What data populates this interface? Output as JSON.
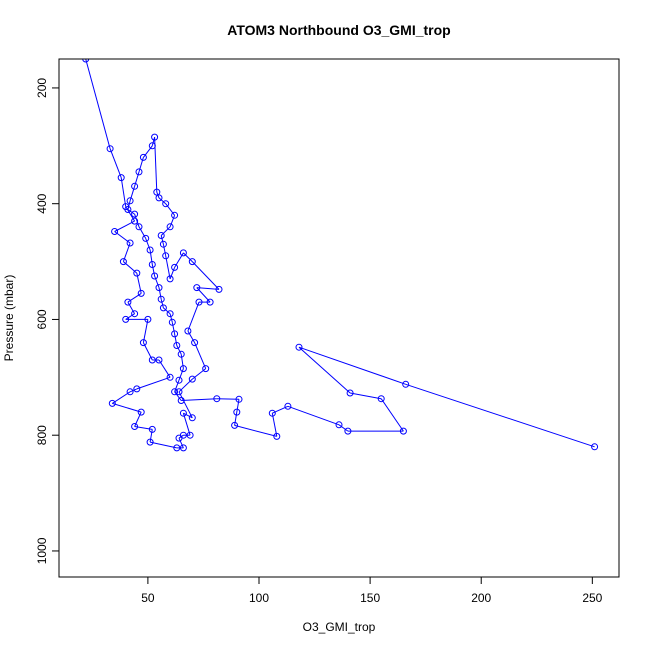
{
  "chart_data": {
    "type": "line",
    "title": "ATOM3 Northbound O3_GMI_trop",
    "xlabel": "O3_GMI_trop",
    "ylabel": "Pressure (mbar)",
    "xlim": [
      10,
      262
    ],
    "ylim": [
      1045,
      150
    ],
    "y_reversed": true,
    "xticks": [
      50,
      100,
      150,
      200,
      250
    ],
    "yticks": [
      200,
      400,
      600,
      800,
      1000
    ],
    "grid": false,
    "series_color": "#0000ff",
    "series": [
      {
        "style": "lines+markers",
        "marker": "open-circle",
        "points": [
          [
            22,
            150
          ],
          [
            33,
            305
          ],
          [
            38,
            355
          ],
          [
            40,
            405
          ],
          [
            44,
            430
          ],
          [
            35,
            448
          ],
          [
            42,
            468
          ],
          [
            39,
            500
          ],
          [
            45,
            520
          ],
          [
            47,
            555
          ],
          [
            41,
            570
          ],
          [
            44,
            590
          ],
          [
            40,
            600
          ],
          [
            50,
            600
          ],
          [
            48,
            640
          ],
          [
            52,
            670
          ],
          [
            55,
            670
          ],
          [
            60,
            700
          ],
          [
            45,
            720
          ],
          [
            42,
            725
          ],
          [
            34,
            745
          ],
          [
            47,
            760
          ],
          [
            44,
            785
          ],
          [
            52,
            790
          ],
          [
            51,
            812
          ],
          [
            63,
            822
          ],
          [
            66,
            822
          ],
          [
            64,
            805
          ],
          [
            66,
            800
          ],
          [
            69,
            800
          ],
          [
            66,
            762
          ],
          [
            70,
            770
          ],
          [
            64,
            725
          ],
          [
            70,
            703
          ],
          [
            76,
            685
          ],
          [
            71,
            640
          ],
          [
            68,
            620
          ],
          [
            73,
            570
          ],
          [
            78,
            570
          ],
          [
            72,
            545
          ],
          [
            82,
            548
          ],
          [
            70,
            500
          ],
          [
            66,
            485
          ],
          [
            62,
            510
          ],
          [
            60,
            530
          ],
          [
            58,
            490
          ],
          [
            57,
            470
          ],
          [
            56,
            455
          ],
          [
            60,
            440
          ],
          [
            62,
            420
          ],
          [
            58,
            400
          ],
          [
            55,
            390
          ],
          [
            54,
            380
          ],
          [
            53,
            285
          ],
          [
            52,
            300
          ],
          [
            48,
            320
          ],
          [
            46,
            345
          ],
          [
            44,
            370
          ],
          [
            42,
            395
          ],
          [
            41,
            410
          ],
          [
            44,
            418
          ],
          [
            46,
            440
          ],
          [
            49,
            460
          ],
          [
            51,
            480
          ],
          [
            52,
            505
          ],
          [
            53,
            525
          ],
          [
            55,
            545
          ],
          [
            56,
            565
          ],
          [
            57,
            580
          ],
          [
            60,
            590
          ],
          [
            61,
            605
          ],
          [
            62,
            625
          ],
          [
            63,
            645
          ],
          [
            65,
            660
          ],
          [
            66,
            685
          ],
          [
            64,
            705
          ],
          [
            62,
            725
          ],
          [
            65,
            740
          ],
          [
            81,
            737
          ],
          [
            91,
            738
          ],
          [
            90,
            760
          ],
          [
            89,
            783
          ],
          [
            108,
            802
          ],
          [
            106,
            762
          ],
          [
            113,
            750
          ],
          [
            136,
            782
          ],
          [
            140,
            793
          ],
          [
            165,
            793
          ],
          [
            155,
            737
          ],
          [
            141,
            727
          ],
          [
            118,
            648
          ],
          [
            166,
            712
          ],
          [
            251,
            820
          ]
        ]
      }
    ]
  }
}
